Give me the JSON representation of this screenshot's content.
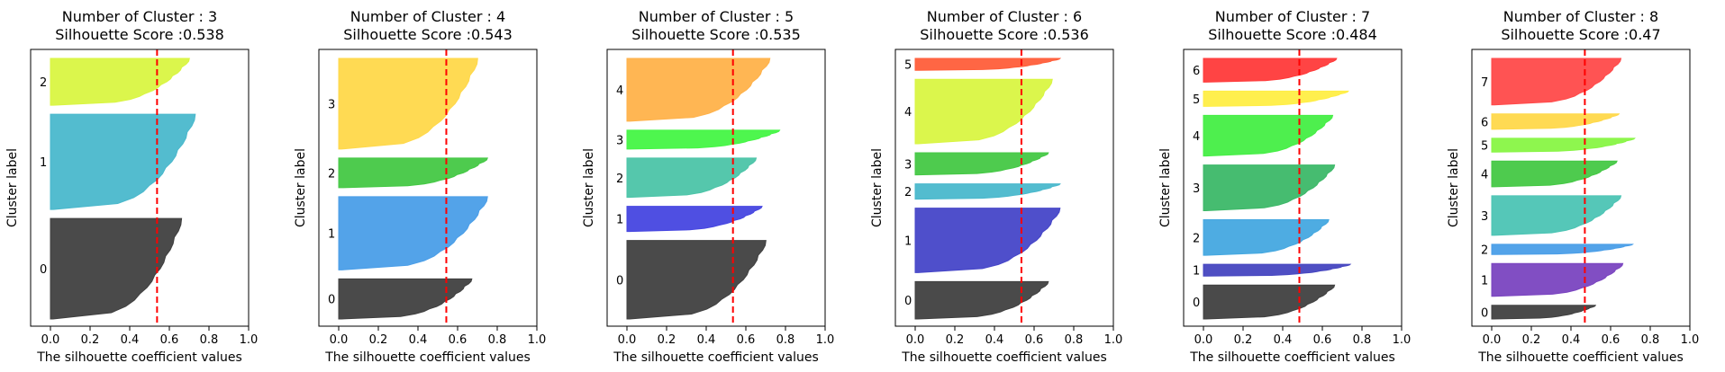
{
  "figure": {
    "xlabel": "The silhouette coefficient values",
    "ylabel": "Cluster label",
    "xticks": [
      "0.0",
      "0.2",
      "0.4",
      "0.6",
      "0.8",
      "1.0"
    ]
  },
  "chart_data": [
    {
      "type": "area",
      "title": "Number of Cluster : 3",
      "subtitle": "Silhouette Score :0.538",
      "xlabel": "The silhouette coefficient values",
      "ylabel": "Cluster label",
      "xlim": [
        -0.1,
        1.0
      ],
      "xticks": [
        0.0,
        0.2,
        0.4,
        0.6,
        0.8,
        1.0
      ],
      "grid": false,
      "silhouette_score": 0.538,
      "clusters": [
        {
          "label": "0",
          "color": "#404040",
          "max": 0.67,
          "size": 58
        },
        {
          "label": "1",
          "color": "#4ab8cc",
          "max": 0.74,
          "size": 55
        },
        {
          "label": "2",
          "color": "#d9f542",
          "max": 0.71,
          "size": 27
        }
      ]
    },
    {
      "type": "area",
      "title": "Number of Cluster : 4",
      "subtitle": "Silhouette Score :0.543",
      "xlabel": "The silhouette coefficient values",
      "ylabel": "Cluster label",
      "xlim": [
        -0.1,
        1.0
      ],
      "xticks": [
        0.0,
        0.2,
        0.4,
        0.6,
        0.8,
        1.0
      ],
      "grid": false,
      "silhouette_score": 0.543,
      "clusters": [
        {
          "label": "0",
          "color": "#404040",
          "max": 0.68,
          "size": 23
        },
        {
          "label": "1",
          "color": "#4a9ee8",
          "max": 0.76,
          "size": 42
        },
        {
          "label": "2",
          "color": "#45c845",
          "max": 0.76,
          "size": 17
        },
        {
          "label": "3",
          "color": "#ffd84a",
          "max": 0.71,
          "size": 52
        }
      ]
    },
    {
      "type": "area",
      "title": "Number of Cluster : 5",
      "subtitle": "Silhouette Score :0.535",
      "xlabel": "The silhouette coefficient values",
      "ylabel": "Cluster label",
      "xlim": [
        -0.1,
        1.0
      ],
      "xticks": [
        0.0,
        0.2,
        0.4,
        0.6,
        0.8,
        1.0
      ],
      "grid": false,
      "silhouette_score": 0.535,
      "clusters": [
        {
          "label": "0",
          "color": "#404040",
          "max": 0.71,
          "size": 50
        },
        {
          "label": "1",
          "color": "#4646e0",
          "max": 0.69,
          "size": 16
        },
        {
          "label": "2",
          "color": "#4cc4a8",
          "max": 0.66,
          "size": 25
        },
        {
          "label": "3",
          "color": "#45f545",
          "max": 0.78,
          "size": 12
        },
        {
          "label": "4",
          "color": "#ffb24a",
          "max": 0.73,
          "size": 40
        }
      ]
    },
    {
      "type": "area",
      "title": "Number of Cluster : 6",
      "subtitle": "Silhouette Score :0.536",
      "xlabel": "The silhouette coefficient values",
      "ylabel": "Cluster label",
      "xlim": [
        -0.1,
        1.0
      ],
      "xticks": [
        0.0,
        0.2,
        0.4,
        0.6,
        0.8,
        1.0
      ],
      "grid": false,
      "silhouette_score": 0.536,
      "clusters": [
        {
          "label": "0",
          "color": "#404040",
          "max": 0.68,
          "size": 22
        },
        {
          "label": "1",
          "color": "#4646c8",
          "max": 0.74,
          "size": 38
        },
        {
          "label": "2",
          "color": "#4ab8cc",
          "max": 0.74,
          "size": 9
        },
        {
          "label": "3",
          "color": "#45c845",
          "max": 0.68,
          "size": 13
        },
        {
          "label": "4",
          "color": "#d9f542",
          "max": 0.7,
          "size": 38
        },
        {
          "label": "5",
          "color": "#ff5e3a",
          "max": 0.74,
          "size": 7
        }
      ]
    },
    {
      "type": "area",
      "title": "Number of Cluster : 7",
      "subtitle": "Silhouette Score :0.484",
      "xlabel": "The silhouette coefficient values",
      "ylabel": "Cluster label",
      "xlim": [
        -0.1,
        1.0
      ],
      "xticks": [
        0.0,
        0.2,
        0.4,
        0.6,
        0.8,
        1.0
      ],
      "grid": false,
      "silhouette_score": 0.484,
      "clusters": [
        {
          "label": "0",
          "color": "#404040",
          "max": 0.67,
          "size": 20
        },
        {
          "label": "1",
          "color": "#4646c0",
          "max": 0.75,
          "size": 7
        },
        {
          "label": "2",
          "color": "#45a8e0",
          "max": 0.64,
          "size": 21
        },
        {
          "label": "3",
          "color": "#3cb868",
          "max": 0.67,
          "size": 27
        },
        {
          "label": "4",
          "color": "#45ee45",
          "max": 0.66,
          "size": 24
        },
        {
          "label": "5",
          "color": "#ffee45",
          "max": 0.74,
          "size": 9
        },
        {
          "label": "6",
          "color": "#ff3a3a",
          "max": 0.68,
          "size": 14
        }
      ]
    },
    {
      "type": "area",
      "title": "Number of Cluster : 8",
      "subtitle": "Silhouette Score :0.47",
      "xlabel": "The silhouette coefficient values",
      "ylabel": "Cluster label",
      "xlim": [
        -0.1,
        1.0
      ],
      "xticks": [
        0.0,
        0.2,
        0.4,
        0.6,
        0.8,
        1.0
      ],
      "grid": false,
      "silhouette_score": 0.47,
      "clusters": [
        {
          "label": "0",
          "color": "#404040",
          "max": 0.53,
          "size": 8
        },
        {
          "label": "1",
          "color": "#7a44c0",
          "max": 0.67,
          "size": 19
        },
        {
          "label": "2",
          "color": "#4a9ee8",
          "max": 0.72,
          "size": 6
        },
        {
          "label": "3",
          "color": "#4cc4b4",
          "max": 0.66,
          "size": 23
        },
        {
          "label": "4",
          "color": "#45c845",
          "max": 0.64,
          "size": 15
        },
        {
          "label": "5",
          "color": "#88f545",
          "max": 0.73,
          "size": 8
        },
        {
          "label": "6",
          "color": "#ffd84a",
          "max": 0.65,
          "size": 9
        },
        {
          "label": "7",
          "color": "#ff4a4a",
          "max": 0.66,
          "size": 27
        }
      ]
    }
  ]
}
